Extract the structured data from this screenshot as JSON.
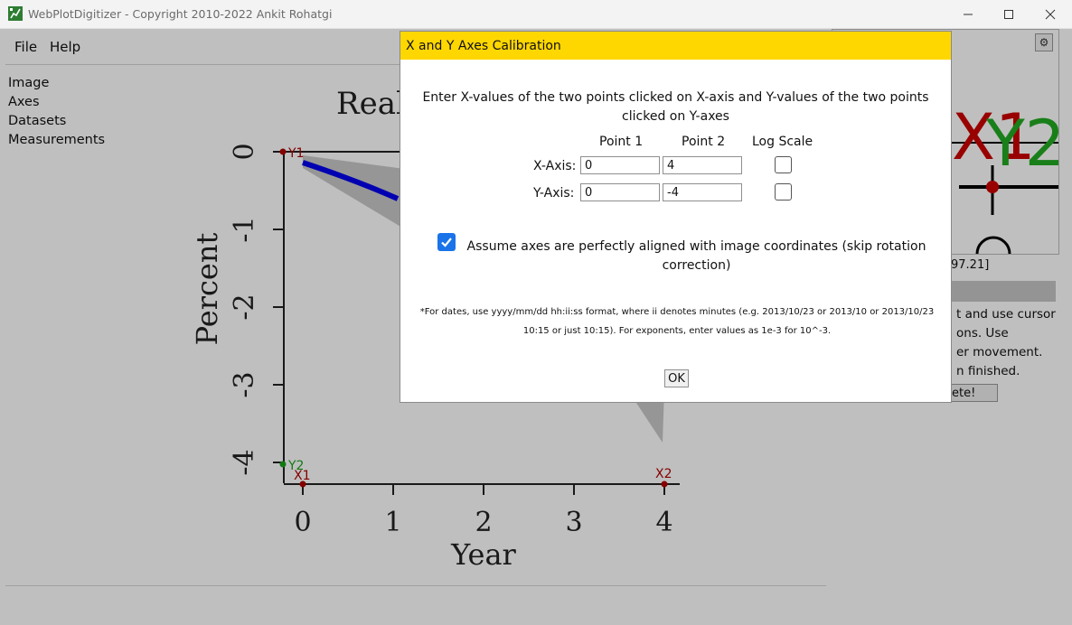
{
  "window": {
    "title": "WebPlotDigitizer - Copyright 2010-2022 Ankit Rohatgi"
  },
  "menu": [
    "File",
    "Help"
  ],
  "sidebar": [
    "Image",
    "Axes",
    "Datasets",
    "Measurements"
  ],
  "plot": {
    "title_fragment": "Real",
    "xlabel": "Year",
    "ylabel": "Percent",
    "x_ticks": [
      "0",
      "1",
      "2",
      "3",
      "4"
    ],
    "y_ticks": [
      "0",
      "-1",
      "-2",
      "-3",
      "-4"
    ],
    "markers": {
      "y1": "Y1",
      "y2": "Y2",
      "x1": "X1",
      "x2": "X2"
    },
    "colors": {
      "line": "#0000ee",
      "band": "#c8c8c8",
      "marker_red": "#b30000",
      "marker_green": "#1aa31a"
    }
  },
  "zoom": {
    "label_x": "X1",
    "label_y": "Y2",
    "settings_icon": "gear-icon"
  },
  "right_panel": {
    "coords": "97.21]",
    "instructions": [
      "t and use cursor",
      "ons. Use",
      "er movement.",
      "n finished."
    ],
    "complete_button": "ete!"
  },
  "dialog": {
    "title": "X and Y Axes Calibration",
    "instructions": "Enter X-values of the two points clicked on X-axis and Y-values of the two points clicked on Y-axes",
    "col_point1": "Point 1",
    "col_point2": "Point 2",
    "col_log": "Log Scale",
    "x_axis_label": "X-Axis:",
    "y_axis_label": "Y-Axis:",
    "x1": "0",
    "x2": "4",
    "y1": "0",
    "y2": "-4",
    "x_log": false,
    "y_log": false,
    "assume_aligned_checked": true,
    "assume_aligned_text": "Assume axes are perfectly aligned with image coordinates (skip rotation correction)",
    "note": "*For dates, use yyyy/mm/dd hh:ii:ss format, where ii denotes minutes (e.g. 2013/10/23 or 2013/10 or 2013/10/23 10:15 or just 10:15). For exponents, enter values as 1e-3 for 10^-3.",
    "ok_label": "OK",
    "header_color": "#ffd700"
  }
}
